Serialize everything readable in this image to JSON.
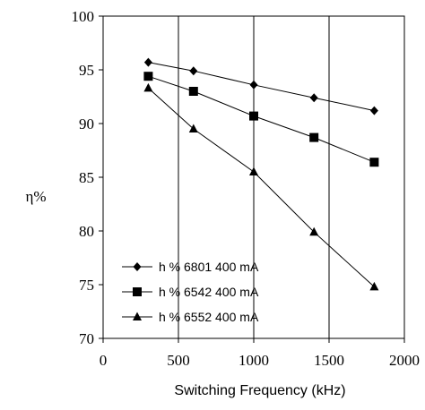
{
  "chart_data": {
    "type": "line",
    "xlabel": "Switching Frequency (kHz)",
    "ylabel": "η%",
    "xlim": [
      0,
      2000
    ],
    "ylim": [
      70,
      100
    ],
    "xticks": [
      0,
      500,
      1000,
      1500,
      2000
    ],
    "yticks": [
      70,
      75,
      80,
      85,
      90,
      95,
      100
    ],
    "x_tick_labels": [
      "0",
      "500",
      "1000",
      "1500",
      "2000"
    ],
    "y_tick_labels": [
      "70",
      "75",
      "80",
      "85",
      "90",
      "95",
      "100"
    ],
    "grid": "vertical",
    "legend_position": "bottom-left",
    "series": [
      {
        "name": "h % 6801 400 mA",
        "marker": "diamond",
        "color": "#000000",
        "x": [
          300,
          600,
          1000,
          1400,
          1800
        ],
        "y": [
          95.7,
          94.9,
          93.6,
          92.4,
          91.2
        ]
      },
      {
        "name": "h % 6542 400 mA",
        "marker": "square",
        "color": "#000000",
        "x": [
          300,
          600,
          1000,
          1400,
          1800
        ],
        "y": [
          94.4,
          93.0,
          90.7,
          88.7,
          86.4
        ]
      },
      {
        "name": "h % 6552 400 mA",
        "marker": "triangle",
        "color": "#000000",
        "x": [
          300,
          600,
          1000,
          1400,
          1800
        ],
        "y": [
          93.3,
          89.5,
          85.5,
          79.9,
          74.8
        ]
      }
    ]
  }
}
